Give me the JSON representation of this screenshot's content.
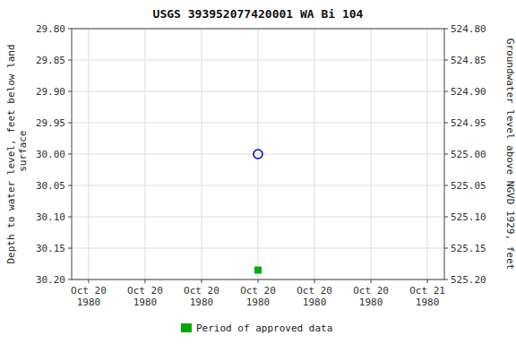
{
  "chart_data": {
    "type": "scatter",
    "title": "USGS 393952077420001 WA Bi 104",
    "y_label": "Depth to water level, feet below land\n surface",
    "y2_label": "Groundwater level above NGVD 1929, feet",
    "categories": [
      "Oct 20\n1980",
      "Oct 20\n1980",
      "Oct 20\n1980",
      "Oct 20\n1980",
      "Oct 20\n1980",
      "Oct 20\n1980",
      "Oct 21\n1980"
    ],
    "series": [
      {
        "color": "#0000bb",
        "marker": "open-circle",
        "values": [
          null,
          null,
          null,
          30.0,
          null,
          null,
          null
        ]
      },
      {
        "name": "Period of approved data",
        "color": "#00aa00",
        "marker": "square",
        "values": [
          null,
          null,
          null,
          30.185,
          null,
          null,
          null
        ]
      }
    ],
    "ylim": [
      30.2,
      29.8
    ],
    "yticks": [
      {
        "value": 29.8,
        "label": "29.80"
      },
      {
        "value": 29.85,
        "label": "29.85"
      },
      {
        "value": 29.9,
        "label": "29.90"
      },
      {
        "value": 29.95,
        "label": "29.95"
      },
      {
        "value": 30.0,
        "label": "30.00"
      },
      {
        "value": 30.05,
        "label": "30.05"
      },
      {
        "value": 30.1,
        "label": "30.10"
      },
      {
        "value": 30.15,
        "label": "30.15"
      },
      {
        "value": 30.2,
        "label": "30.20"
      }
    ],
    "y2lim": [
      525.2,
      524.8
    ],
    "y2ticks": [
      {
        "value": 525.2,
        "label": "525.20"
      },
      {
        "value": 525.15,
        "label": "525.15"
      },
      {
        "value": 525.1,
        "label": "525.10"
      },
      {
        "value": 525.05,
        "label": "525.05"
      },
      {
        "value": 525.0,
        "label": "525.00"
      },
      {
        "value": 524.95,
        "label": "524.95"
      },
      {
        "value": 524.9,
        "label": "524.90"
      },
      {
        "value": 524.85,
        "label": "524.85"
      },
      {
        "value": 524.8,
        "label": "524.80"
      }
    ],
    "grid": true,
    "legend": "bottom"
  }
}
